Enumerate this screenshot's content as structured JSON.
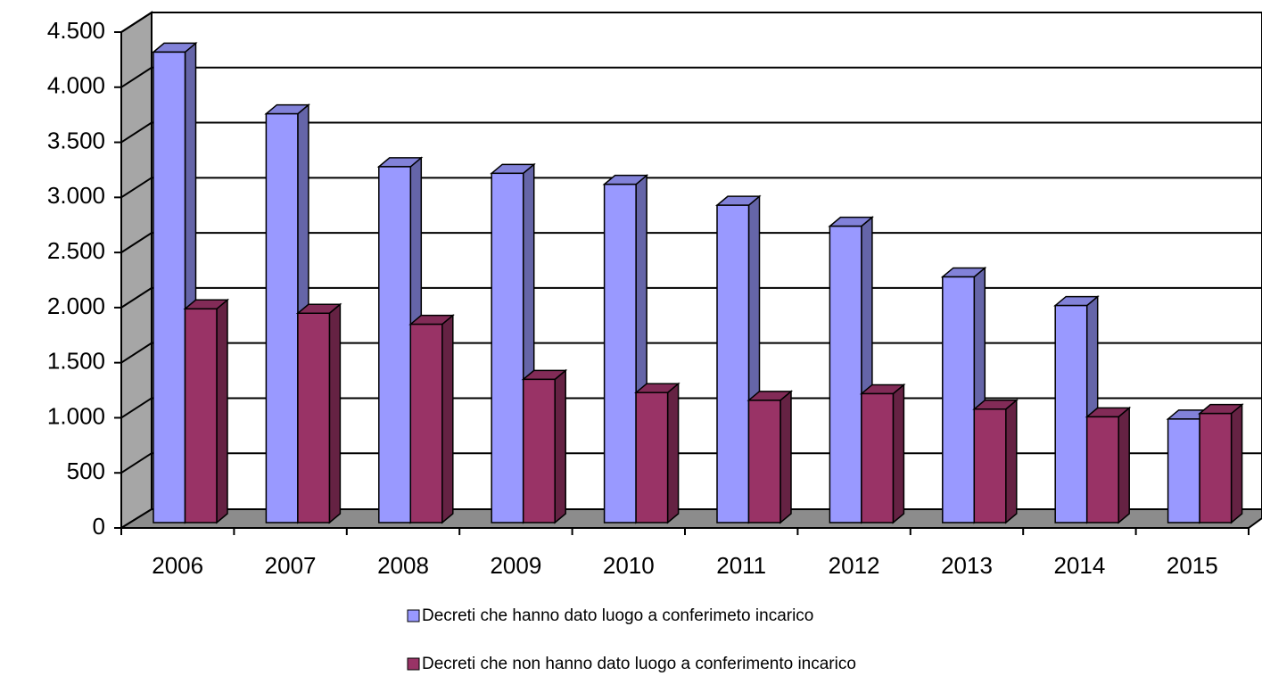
{
  "chart_data": {
    "type": "bar3d",
    "categories": [
      "2006",
      "2007",
      "2008",
      "2009",
      "2010",
      "2011",
      "2012",
      "2013",
      "2014",
      "2015"
    ],
    "series": [
      {
        "name": "Decreti che hanno dato luogo a conferimeto incarico",
        "color": "#9999ff",
        "values": [
          4270,
          3710,
          3230,
          3170,
          3070,
          2880,
          2690,
          2230,
          1970,
          940
        ]
      },
      {
        "name": "Decreti che non hanno dato luogo a conferimento incarico",
        "color": "#993366",
        "values": [
          1940,
          1900,
          1800,
          1300,
          1180,
          1110,
          1170,
          1030,
          960,
          990
        ]
      }
    ],
    "ylim": [
      0,
      4500
    ],
    "yticks": [
      0,
      500,
      {
        "value": 1000,
        "label": "1.000"
      },
      {
        "value": 1500,
        "label": "1.500"
      },
      {
        "value": 2000,
        "label": "2.000"
      },
      {
        "value": 2500,
        "label": "2.500"
      },
      {
        "value": 3000,
        "label": "3.000"
      },
      {
        "value": 3500,
        "label": "3.500"
      },
      {
        "value": 4000,
        "label": "4.000"
      },
      {
        "value": 4500,
        "label": "4.500"
      }
    ],
    "grid": true,
    "legend": "bottom"
  }
}
